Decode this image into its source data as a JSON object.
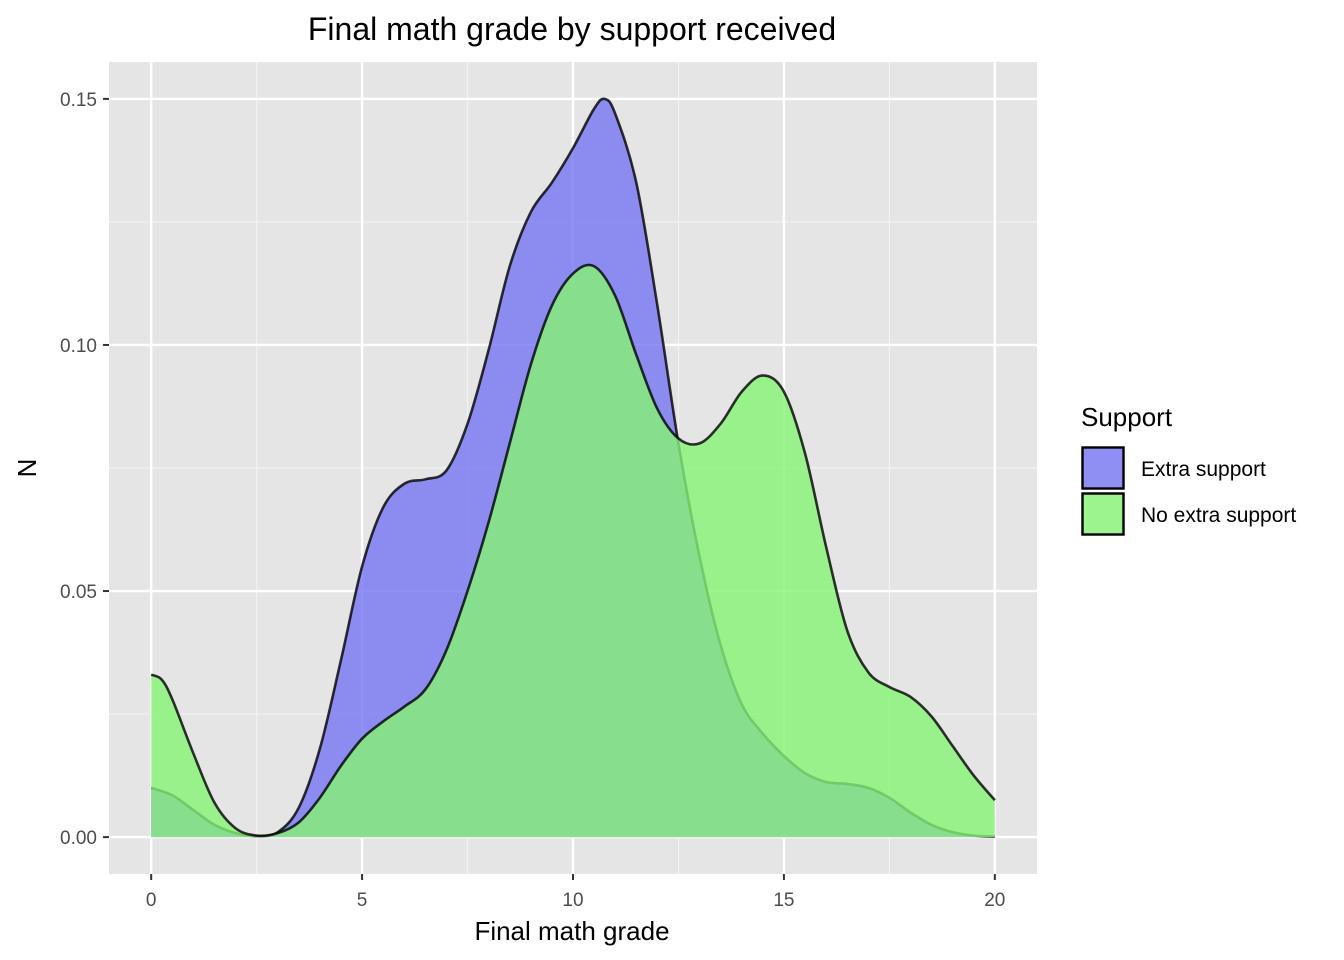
{
  "chart_data": {
    "type": "area",
    "title": "Final math grade by support received",
    "xlabel": "Final math grade",
    "ylabel": "N",
    "xlim": [
      -1,
      21
    ],
    "ylim": [
      -0.0075,
      0.1575
    ],
    "x_ticks": [
      0,
      5,
      10,
      15,
      20
    ],
    "x_tick_labels": [
      "0",
      "5",
      "10",
      "15",
      "20"
    ],
    "y_ticks": [
      0.0,
      0.05,
      0.1,
      0.15
    ],
    "y_tick_labels": [
      "0.00",
      "0.05",
      "0.10",
      "0.15"
    ],
    "grid": true,
    "legend": {
      "title": "Support",
      "placement": "right",
      "entries": [
        "Extra support",
        "No extra support"
      ]
    },
    "series": [
      {
        "name": "Extra support",
        "color": "#7575f3",
        "points": [
          [
            0,
            0.01
          ],
          [
            0.5,
            0.0085
          ],
          [
            1,
            0.0055
          ],
          [
            1.5,
            0.0025
          ],
          [
            2,
            0.0008
          ],
          [
            2.5,
            0.0002
          ],
          [
            3,
            0.001
          ],
          [
            3.5,
            0.006
          ],
          [
            4,
            0.018
          ],
          [
            4.5,
            0.036
          ],
          [
            5,
            0.055
          ],
          [
            5.5,
            0.067
          ],
          [
            6,
            0.0718
          ],
          [
            6.5,
            0.0727
          ],
          [
            7,
            0.0745
          ],
          [
            7.5,
            0.084
          ],
          [
            8,
            0.099
          ],
          [
            8.5,
            0.116
          ],
          [
            9,
            0.127
          ],
          [
            9.5,
            0.133
          ],
          [
            10,
            0.14
          ],
          [
            10.5,
            0.148
          ],
          [
            10.75,
            0.15
          ],
          [
            11,
            0.147
          ],
          [
            11.5,
            0.133
          ],
          [
            12,
            0.108
          ],
          [
            12.5,
            0.08
          ],
          [
            13,
            0.057
          ],
          [
            13.5,
            0.039
          ],
          [
            14,
            0.027
          ],
          [
            14.5,
            0.021
          ],
          [
            15,
            0.0165
          ],
          [
            15.5,
            0.013
          ],
          [
            16,
            0.0112
          ],
          [
            16.5,
            0.0108
          ],
          [
            17,
            0.01
          ],
          [
            17.5,
            0.008
          ],
          [
            18,
            0.005
          ],
          [
            18.5,
            0.0025
          ],
          [
            19,
            0.001
          ],
          [
            19.5,
            0.0003
          ],
          [
            20,
            0.0001
          ]
        ]
      },
      {
        "name": "No extra support",
        "color": "#86f475",
        "points": [
          [
            0,
            0.033
          ],
          [
            0.25,
            0.032
          ],
          [
            0.5,
            0.028
          ],
          [
            1,
            0.017
          ],
          [
            1.5,
            0.007
          ],
          [
            2,
            0.0018
          ],
          [
            2.5,
            0.0003
          ],
          [
            3,
            0.0008
          ],
          [
            3.5,
            0.003
          ],
          [
            4,
            0.008
          ],
          [
            4.5,
            0.0145
          ],
          [
            5,
            0.02
          ],
          [
            5.5,
            0.0235
          ],
          [
            6,
            0.0265
          ],
          [
            6.5,
            0.03
          ],
          [
            7,
            0.038
          ],
          [
            7.5,
            0.05
          ],
          [
            8,
            0.064
          ],
          [
            8.5,
            0.08
          ],
          [
            9,
            0.096
          ],
          [
            9.5,
            0.108
          ],
          [
            10,
            0.1145
          ],
          [
            10.5,
            0.116
          ],
          [
            11,
            0.11
          ],
          [
            11.5,
            0.098
          ],
          [
            12,
            0.087
          ],
          [
            12.5,
            0.081
          ],
          [
            13,
            0.08
          ],
          [
            13.5,
            0.084
          ],
          [
            14,
            0.0905
          ],
          [
            14.5,
            0.0938
          ],
          [
            15,
            0.0905
          ],
          [
            15.5,
            0.078
          ],
          [
            16,
            0.059
          ],
          [
            16.5,
            0.042
          ],
          [
            17,
            0.0335
          ],
          [
            17.5,
            0.0305
          ],
          [
            18,
            0.0285
          ],
          [
            18.5,
            0.0245
          ],
          [
            19,
            0.0185
          ],
          [
            19.5,
            0.0125
          ],
          [
            20,
            0.0075
          ]
        ]
      }
    ]
  }
}
